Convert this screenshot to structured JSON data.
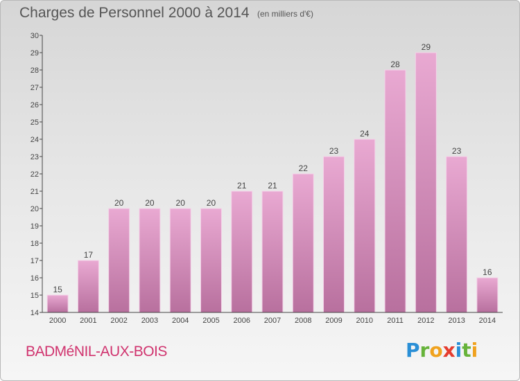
{
  "header": {
    "title": "Charges de Personnel 2000 à 2014",
    "subtitle": "(en milliers d'€)"
  },
  "footer": {
    "commune": "BADMéNIL-AUX-BOIS",
    "brand": "Proxiti"
  },
  "colors": {
    "bar_top": "#e9a9d2",
    "bar_bottom": "#b8709e",
    "commune_text": "#d0336e"
  },
  "chart_data": {
    "type": "bar",
    "title": "Charges de Personnel 2000 à 2014",
    "subtitle": "(en milliers d'€)",
    "categories": [
      "2000",
      "2001",
      "2002",
      "2003",
      "2004",
      "2005",
      "2006",
      "2007",
      "2008",
      "2009",
      "2010",
      "2011",
      "2012",
      "2013",
      "2014"
    ],
    "values": [
      15,
      17,
      20,
      20,
      20,
      20,
      21,
      21,
      22,
      23,
      24,
      28,
      29,
      23,
      16
    ],
    "data_labels": [
      "15",
      "17",
      "20",
      "20",
      "20",
      "20",
      "21",
      "21",
      "22",
      "23",
      "24",
      "28",
      "29",
      "23",
      "16"
    ],
    "y_ticks": [
      "14",
      "15",
      "16",
      "17",
      "18",
      "19",
      "20",
      "21",
      "22",
      "23",
      "24",
      "25",
      "26",
      "27",
      "28",
      "29",
      "30"
    ],
    "ylim": [
      14,
      30
    ],
    "xlabel": "",
    "ylabel": "",
    "grid": false
  }
}
